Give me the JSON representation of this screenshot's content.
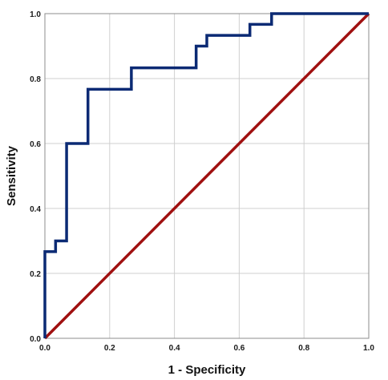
{
  "chart_data": {
    "type": "line",
    "xlabel": "1 - Specificity",
    "ylabel": "Sensitivity",
    "xlim": [
      0,
      1
    ],
    "ylim": [
      0,
      1
    ],
    "grid": true,
    "x_ticks": [
      "0.0",
      "0.2",
      "0.4",
      "0.6",
      "0.8",
      "1.0"
    ],
    "y_ticks": [
      "0.0",
      "0.2",
      "0.4",
      "0.6",
      "0.8",
      "1.0"
    ],
    "series": [
      {
        "color": "#0b2a74",
        "step": true,
        "points": [
          [
            0.0,
            0.0
          ],
          [
            0.0,
            0.267
          ],
          [
            0.033,
            0.267
          ],
          [
            0.033,
            0.3
          ],
          [
            0.067,
            0.3
          ],
          [
            0.067,
            0.6
          ],
          [
            0.133,
            0.6
          ],
          [
            0.133,
            0.767
          ],
          [
            0.267,
            0.767
          ],
          [
            0.267,
            0.833
          ],
          [
            0.467,
            0.833
          ],
          [
            0.467,
            0.9
          ],
          [
            0.5,
            0.9
          ],
          [
            0.5,
            0.933
          ],
          [
            0.633,
            0.933
          ],
          [
            0.633,
            0.967
          ],
          [
            0.7,
            0.967
          ],
          [
            0.7,
            1.0
          ],
          [
            1.0,
            1.0
          ]
        ]
      },
      {
        "color": "#a01010",
        "step": false,
        "points": [
          [
            0.0,
            0.0
          ],
          [
            1.0,
            1.0
          ]
        ]
      }
    ]
  }
}
